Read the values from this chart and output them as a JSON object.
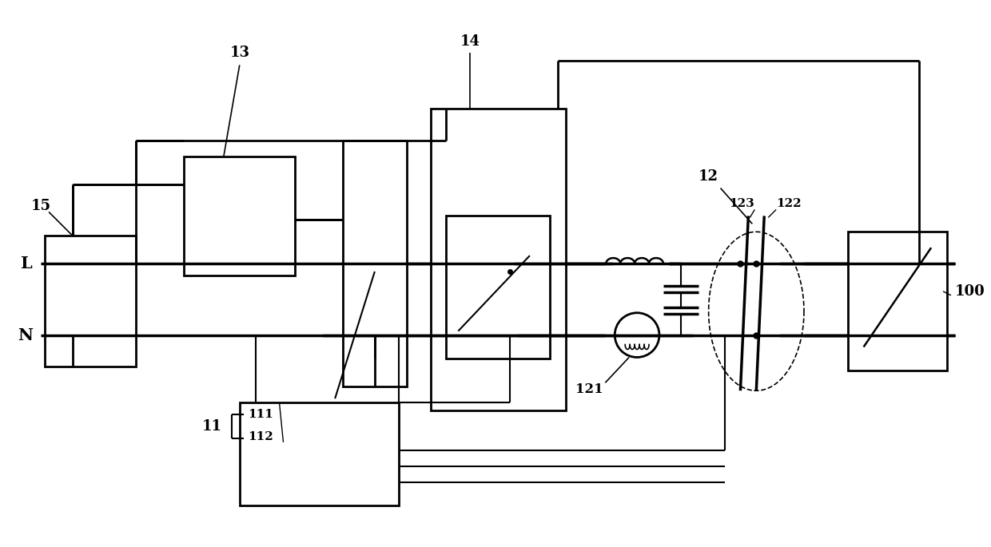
{
  "background_color": "#ffffff",
  "lc": "#000000",
  "lw": 2.0,
  "fig_width": 12.4,
  "fig_height": 6.85,
  "dpi": 100
}
